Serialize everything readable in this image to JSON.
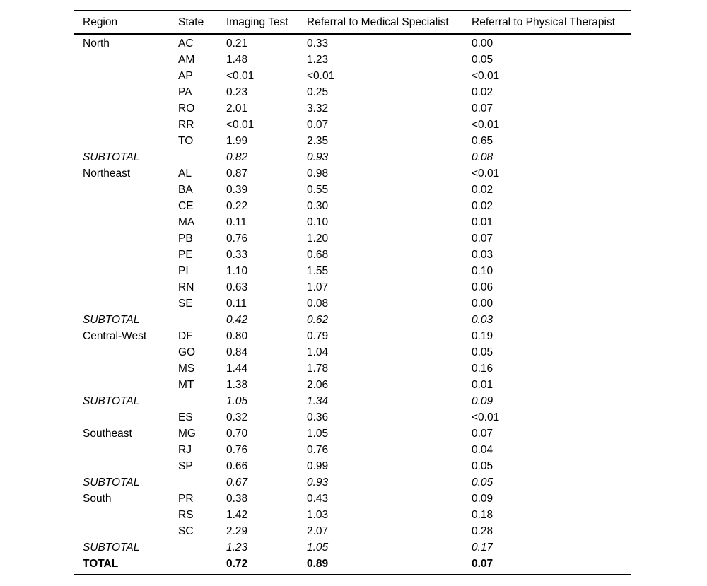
{
  "colors": {
    "background": "#ffffff",
    "text": "#000000",
    "rule": "#000000"
  },
  "table": {
    "columns": [
      "Region",
      "State",
      "Imaging Test",
      "Referral to Medical Specialist",
      "Referral to Physical Therapist"
    ],
    "rows": [
      {
        "region": "North",
        "state": "AC",
        "imaging": "0.21",
        "medical": "0.33",
        "physical": "0.00",
        "style": "normal"
      },
      {
        "region": "",
        "state": "AM",
        "imaging": "1.48",
        "medical": "1.23",
        "physical": "0.05",
        "style": "normal"
      },
      {
        "region": "",
        "state": "AP",
        "imaging": "<0.01",
        "medical": "<0.01",
        "physical": "<0.01",
        "style": "normal"
      },
      {
        "region": "",
        "state": "PA",
        "imaging": "0.23",
        "medical": "0.25",
        "physical": "0.02",
        "style": "normal"
      },
      {
        "region": "",
        "state": "RO",
        "imaging": "2.01",
        "medical": "3.32",
        "physical": "0.07",
        "style": "normal"
      },
      {
        "region": "",
        "state": "RR",
        "imaging": "<0.01",
        "medical": "0.07",
        "physical": "<0.01",
        "style": "normal"
      },
      {
        "region": "",
        "state": "TO",
        "imaging": "1.99",
        "medical": "2.35",
        "physical": "0.65",
        "style": "normal"
      },
      {
        "region": "SUBTOTAL",
        "state": "",
        "imaging": "0.82",
        "medical": "0.93",
        "physical": "0.08",
        "style": "subtotal"
      },
      {
        "region": "Northeast",
        "state": "AL",
        "imaging": "0.87",
        "medical": "0.98",
        "physical": "<0.01",
        "style": "normal"
      },
      {
        "region": "",
        "state": "BA",
        "imaging": "0.39",
        "medical": "0.55",
        "physical": "0.02",
        "style": "normal"
      },
      {
        "region": "",
        "state": "CE",
        "imaging": "0.22",
        "medical": "0.30",
        "physical": "0.02",
        "style": "normal"
      },
      {
        "region": "",
        "state": "MA",
        "imaging": "0.11",
        "medical": "0.10",
        "physical": "0.01",
        "style": "normal"
      },
      {
        "region": "",
        "state": "PB",
        "imaging": "0.76",
        "medical": "1.20",
        "physical": "0.07",
        "style": "normal"
      },
      {
        "region": "",
        "state": "PE",
        "imaging": "0.33",
        "medical": "0.68",
        "physical": "0.03",
        "style": "normal"
      },
      {
        "region": "",
        "state": "PI",
        "imaging": "1.10",
        "medical": "1.55",
        "physical": "0.10",
        "style": "normal"
      },
      {
        "region": "",
        "state": "RN",
        "imaging": "0.63",
        "medical": "1.07",
        "physical": "0.06",
        "style": "normal"
      },
      {
        "region": "",
        "state": "SE",
        "imaging": "0.11",
        "medical": "0.08",
        "physical": "0.00",
        "style": "normal"
      },
      {
        "region": "SUBTOTAL",
        "state": "",
        "imaging": "0.42",
        "medical": "0.62",
        "physical": "0.03",
        "style": "subtotal"
      },
      {
        "region": "Central-West",
        "state": "DF",
        "imaging": "0.80",
        "medical": "0.79",
        "physical": "0.19",
        "style": "normal"
      },
      {
        "region": "",
        "state": "GO",
        "imaging": "0.84",
        "medical": "1.04",
        "physical": "0.05",
        "style": "normal"
      },
      {
        "region": "",
        "state": "MS",
        "imaging": "1.44",
        "medical": "1.78",
        "physical": "0.16",
        "style": "normal"
      },
      {
        "region": "",
        "state": "MT",
        "imaging": "1.38",
        "medical": "2.06",
        "physical": "0.01",
        "style": "normal"
      },
      {
        "region": "SUBTOTAL",
        "state": "",
        "imaging": "1.05",
        "medical": "1.34",
        "physical": "0.09",
        "style": "subtotal"
      },
      {
        "region": "",
        "state": "ES",
        "imaging": "0.32",
        "medical": "0.36",
        "physical": "<0.01",
        "style": "normal"
      },
      {
        "region": "Southeast",
        "state": "MG",
        "imaging": "0.70",
        "medical": "1.05",
        "physical": "0.07",
        "style": "normal"
      },
      {
        "region": "",
        "state": "RJ",
        "imaging": "0.76",
        "medical": "0.76",
        "physical": "0.04",
        "style": "normal"
      },
      {
        "region": "",
        "state": "SP",
        "imaging": "0.66",
        "medical": "0.99",
        "physical": "0.05",
        "style": "normal"
      },
      {
        "region": "SUBTOTAL",
        "state": "",
        "imaging": "0.67",
        "medical": "0.93",
        "physical": "0.05",
        "style": "subtotal"
      },
      {
        "region": "South",
        "state": "PR",
        "imaging": "0.38",
        "medical": "0.43",
        "physical": "0.09",
        "style": "normal"
      },
      {
        "region": "",
        "state": "RS",
        "imaging": "1.42",
        "medical": "1.03",
        "physical": "0.18",
        "style": "normal"
      },
      {
        "region": "",
        "state": "SC",
        "imaging": "2.29",
        "medical": "2.07",
        "physical": "0.28",
        "style": "normal"
      },
      {
        "region": "SUBTOTAL",
        "state": "",
        "imaging": "1.23",
        "medical": "1.05",
        "physical": "0.17",
        "style": "subtotal"
      },
      {
        "region": "TOTAL",
        "state": "",
        "imaging": "0.72",
        "medical": "0.89",
        "physical": "0.07",
        "style": "total"
      }
    ]
  }
}
